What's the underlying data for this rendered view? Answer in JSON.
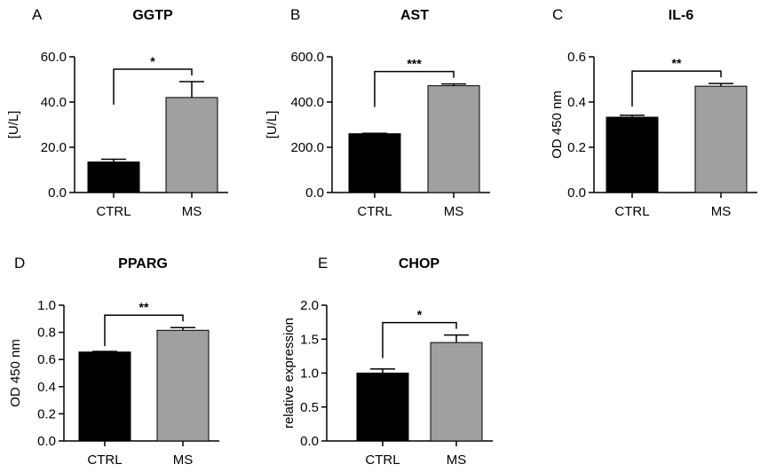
{
  "chart_data": [
    {
      "type": "bar",
      "panel": "A",
      "title": "GGTP",
      "ylabel": "[U/L]",
      "xlabel": "",
      "categories": [
        "CTRL",
        "MS"
      ],
      "values": [
        13.5,
        42.0
      ],
      "errors": [
        1.2,
        7.0
      ],
      "colors": [
        "#000000",
        "#a0a0a0"
      ],
      "ylim": [
        0,
        60
      ],
      "yticks": [
        0,
        20,
        40,
        60
      ],
      "ytick_labels": [
        "0.0",
        "20.0",
        "40.0",
        "60.0"
      ],
      "significance": "*"
    },
    {
      "type": "bar",
      "panel": "B",
      "title": "AST",
      "ylabel": "[U/L]",
      "xlabel": "",
      "categories": [
        "CTRL",
        "MS"
      ],
      "values": [
        260,
        472
      ],
      "errors": [
        2,
        8
      ],
      "colors": [
        "#000000",
        "#a0a0a0"
      ],
      "ylim": [
        0,
        600
      ],
      "yticks": [
        0,
        200,
        400,
        600
      ],
      "ytick_labels": [
        "0.0",
        "200.0",
        "400.0",
        "600.0"
      ],
      "significance": "***"
    },
    {
      "type": "bar",
      "panel": "C",
      "title": "IL-6",
      "ylabel": "OD 450 nm",
      "xlabel": "",
      "categories": [
        "CTRL",
        "MS"
      ],
      "values": [
        0.333,
        0.47
      ],
      "errors": [
        0.008,
        0.012
      ],
      "colors": [
        "#000000",
        "#a0a0a0"
      ],
      "ylim": [
        0,
        0.6
      ],
      "yticks": [
        0,
        0.2,
        0.4,
        0.6
      ],
      "ytick_labels": [
        "0.0",
        "0.2",
        "0.4",
        "0.6"
      ],
      "significance": "**"
    },
    {
      "type": "bar",
      "panel": "D",
      "title": "PPARG",
      "ylabel": "OD 450 nm",
      "xlabel": "",
      "categories": [
        "CTRL",
        "MS"
      ],
      "values": [
        0.655,
        0.815
      ],
      "errors": [
        0.004,
        0.02
      ],
      "colors": [
        "#000000",
        "#a0a0a0"
      ],
      "ylim": [
        0,
        1.0
      ],
      "yticks": [
        0,
        0.2,
        0.4,
        0.6,
        0.8,
        1.0
      ],
      "ytick_labels": [
        "0.0",
        "0.2",
        "0.4",
        "0.6",
        "0.8",
        "1.0"
      ],
      "significance": "**"
    },
    {
      "type": "bar",
      "panel": "E",
      "title": "CHOP",
      "ylabel": "relative expression",
      "xlabel": "",
      "categories": [
        "CTRL",
        "MS"
      ],
      "values": [
        1.0,
        1.45
      ],
      "errors": [
        0.06,
        0.11
      ],
      "colors": [
        "#000000",
        "#a0a0a0"
      ],
      "ylim": [
        0,
        2.0
      ],
      "yticks": [
        0,
        0.5,
        1.0,
        1.5,
        2.0
      ],
      "ytick_labels": [
        "0.0",
        "0.5",
        "1.0",
        "1.5",
        "2.0"
      ],
      "significance": "*"
    }
  ]
}
